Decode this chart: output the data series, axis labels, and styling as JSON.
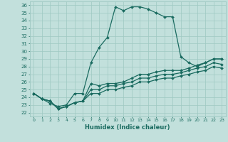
{
  "xlabel": "Humidex (Indice chaleur)",
  "xlim": [
    -0.5,
    23.5
  ],
  "ylim": [
    21.5,
    36.5
  ],
  "yticks": [
    22,
    23,
    24,
    25,
    26,
    27,
    28,
    29,
    30,
    31,
    32,
    33,
    34,
    35,
    36
  ],
  "xticks": [
    0,
    1,
    2,
    3,
    4,
    5,
    6,
    7,
    8,
    9,
    10,
    11,
    12,
    13,
    14,
    15,
    16,
    17,
    18,
    19,
    20,
    21,
    22,
    23
  ],
  "bg_color": "#c2e0dc",
  "grid_color": "#9ec8c2",
  "line_color": "#1a6b60",
  "marker": "D",
  "marker_size": 2.0,
  "line_width": 0.9,
  "lines": [
    [
      24.5,
      23.8,
      23.2,
      22.8,
      23.0,
      24.5,
      24.5,
      28.5,
      30.5,
      31.8,
      35.8,
      35.3,
      35.8,
      35.8,
      35.5,
      35.0,
      34.5,
      34.5,
      29.3,
      28.5,
      28.0,
      28.5,
      29.0,
      29.0
    ],
    [
      24.5,
      23.8,
      23.5,
      22.5,
      22.8,
      23.3,
      23.5,
      25.8,
      25.5,
      25.8,
      25.8,
      26.0,
      26.5,
      27.0,
      27.0,
      27.3,
      27.5,
      27.5,
      27.5,
      27.8,
      28.2,
      28.5,
      29.0,
      29.0
    ],
    [
      24.5,
      23.8,
      23.5,
      22.5,
      22.8,
      23.3,
      23.5,
      25.0,
      25.0,
      25.5,
      25.5,
      25.8,
      26.0,
      26.5,
      26.5,
      26.8,
      27.0,
      27.0,
      27.2,
      27.5,
      27.8,
      28.0,
      28.5,
      28.3
    ],
    [
      24.5,
      23.8,
      23.5,
      22.5,
      22.8,
      23.3,
      23.5,
      24.5,
      24.5,
      25.0,
      25.0,
      25.3,
      25.5,
      26.0,
      26.0,
      26.3,
      26.5,
      26.5,
      26.8,
      27.0,
      27.3,
      27.5,
      28.0,
      27.8
    ]
  ]
}
